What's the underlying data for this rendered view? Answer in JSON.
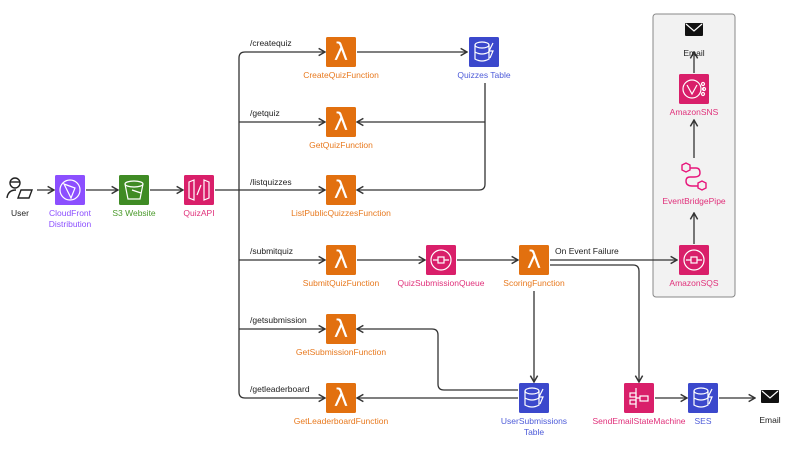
{
  "colors": {
    "lambda": "#E2700F",
    "lambda_label": "#E8791E",
    "cloudfront": "#8C4FFF",
    "s3": "#3F8B24",
    "s3_label": "#4A9A2A",
    "integration": "#D91F6A",
    "integration_label": "#E0307A",
    "database": "#3B48CC",
    "database_label": "#4D5BD9",
    "panel_bg": "#F2F2F2",
    "panel_border": "#888888"
  },
  "nodes": {
    "user": {
      "label": "User",
      "icon": "user-laptop-icon"
    },
    "cloudfront": {
      "label": "CloudFront",
      "label2": "Distribution",
      "icon": "cloudfront-icon"
    },
    "s3": {
      "label": "S3 Website",
      "icon": "s3-bucket-icon"
    },
    "quizapi": {
      "label": "QuizAPI",
      "icon": "api-gateway-icon"
    },
    "createquiz": {
      "label": "CreateQuizFunction",
      "icon": "lambda-icon"
    },
    "getquiz": {
      "label": "GetQuizFunction",
      "icon": "lambda-icon"
    },
    "listquizzes": {
      "label": "ListPublicQuizzesFunction",
      "icon": "lambda-icon"
    },
    "submitquiz": {
      "label": "SubmitQuizFunction",
      "icon": "lambda-icon"
    },
    "getsubmission": {
      "label": "GetSubmissionFunction",
      "icon": "lambda-icon"
    },
    "getleaderboard": {
      "label": "GetLeaderboardFunction",
      "icon": "lambda-icon"
    },
    "quizzestable": {
      "label": "Quizzes Table",
      "icon": "dynamodb-icon"
    },
    "queue": {
      "label": "QuizSubmissionQueue",
      "icon": "sqs-icon"
    },
    "scoring": {
      "label": "ScoringFunction",
      "icon": "lambda-icon"
    },
    "usersubs": {
      "label": "UserSubmissions",
      "label2": "Table",
      "icon": "dynamodb-icon"
    },
    "statemachine": {
      "label": "SendEmailStateMachine",
      "icon": "step-functions-icon"
    },
    "ses": {
      "label": "SES",
      "icon": "ses-icon"
    },
    "email1": {
      "label": "Email",
      "icon": "envelope-icon"
    },
    "sqs": {
      "label": "AmazonSQS",
      "icon": "sqs-icon"
    },
    "pipe": {
      "label": "EventBridgePipe",
      "icon": "eventbridge-pipe-icon"
    },
    "sns": {
      "label": "AmazonSNS",
      "icon": "sns-icon"
    },
    "email2": {
      "label": "Email",
      "icon": "envelope-icon"
    }
  },
  "routes": {
    "createquiz": "/createquiz",
    "getquiz": "/getquiz",
    "listquizzes": "/listquizzes",
    "submitquiz": "/submitquiz",
    "getsubmission": "/getsubmission",
    "getleaderboard": "/getleaderboard"
  },
  "edge_labels": {
    "failure": "On Event Failure"
  }
}
